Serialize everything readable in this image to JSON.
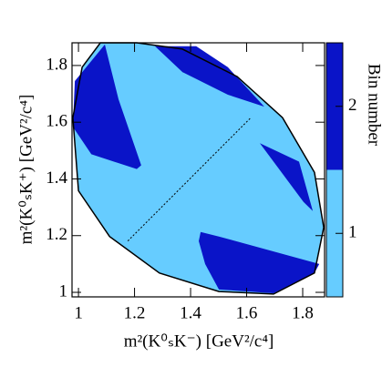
{
  "chart_data": {
    "type": "dalitz",
    "x_label": "m²(K⁰ₛK⁻) [GeV²/c⁴]",
    "y_label": "m²(K⁰ₛK⁺) [GeV²/c⁴]",
    "colorbar_label": "Bin number",
    "xlim": [
      0.977,
      1.878
    ],
    "ylim": [
      0.984,
      1.88
    ],
    "xticks": [
      1,
      1.2,
      1.4,
      1.6,
      1.8
    ],
    "yticks": [
      1,
      1.2,
      1.4,
      1.6,
      1.8
    ],
    "zlim": [
      0.5,
      2.5
    ],
    "zticks": [
      1,
      2
    ],
    "colors": [
      "#66ccff",
      "#0a14c8"
    ],
    "boundary": {
      "bin": 1,
      "points": [
        [
          1.078,
          1.88
        ],
        [
          1.208,
          1.88
        ],
        [
          1.371,
          1.858
        ],
        [
          1.566,
          1.761
        ],
        [
          1.728,
          1.616
        ],
        [
          1.842,
          1.423
        ],
        [
          1.875,
          1.229
        ],
        [
          1.842,
          1.068
        ],
        [
          1.696,
          0.994
        ],
        [
          1.501,
          1.003
        ],
        [
          1.289,
          1.068
        ],
        [
          1.111,
          1.197
        ],
        [
          1.0,
          1.358
        ],
        [
          0.98,
          1.616
        ],
        [
          1.013,
          1.794
        ]
      ]
    },
    "regions": [
      {
        "bin": 2,
        "points": [
          [
            1.094,
            1.874
          ],
          [
            0.987,
            1.745
          ],
          [
            0.98,
            1.584
          ],
          [
            1.046,
            1.487
          ],
          [
            1.208,
            1.435
          ],
          [
            1.224,
            1.448
          ],
          [
            1.143,
            1.681
          ]
        ]
      },
      {
        "bin": 2,
        "points": [
          [
            1.273,
            1.868
          ],
          [
            1.42,
            1.868
          ],
          [
            1.533,
            1.794
          ],
          [
            1.663,
            1.655
          ],
          [
            1.533,
            1.697
          ],
          [
            1.371,
            1.777
          ]
        ]
      },
      {
        "bin": 2,
        "points": [
          [
            1.647,
            1.526
          ],
          [
            1.787,
            1.461
          ],
          [
            1.836,
            1.287
          ],
          [
            1.803,
            1.319
          ]
        ]
      },
      {
        "bin": 2,
        "points": [
          [
            1.436,
            1.213
          ],
          [
            1.501,
            1.197
          ],
          [
            1.859,
            1.1
          ],
          [
            1.842,
            1.068
          ],
          [
            1.696,
            0.997
          ],
          [
            1.501,
            1.01
          ],
          [
            1.452,
            1.1
          ],
          [
            1.429,
            1.181
          ]
        ]
      }
    ],
    "dashed_line": [
      [
        1.176,
        1.181
      ],
      [
        1.615,
        1.616
      ]
    ]
  }
}
